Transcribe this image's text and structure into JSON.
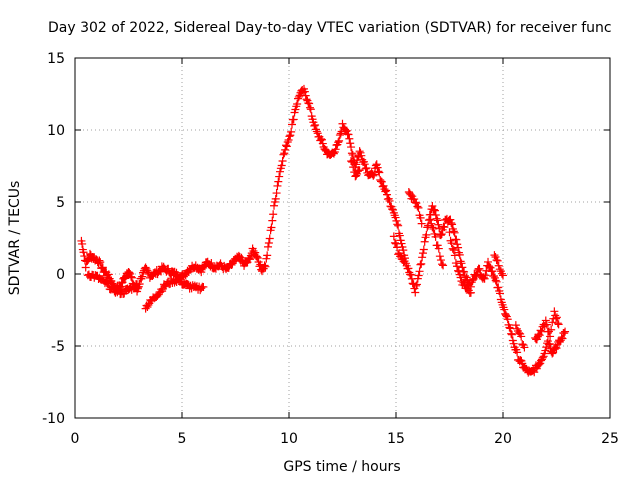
{
  "chart_data": {
    "type": "scatter",
    "title": "Day 302 of 2022, Sidereal Day-to-day VTEC variation (SDTVAR) for receiver func",
    "xlabel": "GPS time / hours",
    "ylabel": "SDTVAR / TECUs",
    "xlim": [
      0,
      25
    ],
    "ylim": [
      -10,
      15
    ],
    "xticks": [
      "0",
      "5",
      "10",
      "15",
      "20",
      "25"
    ],
    "yticks": [
      "-10",
      "-5",
      "0",
      "5",
      "10",
      "15"
    ],
    "grid": true,
    "marker": "+",
    "color": "#ff0000",
    "series": [
      {
        "name": "SDTVAR",
        "trace": [
          [
            0.3,
            2.3
          ],
          [
            0.4,
            1.6
          ],
          [
            0.5,
            0.6
          ],
          [
            0.7,
            1.3
          ],
          [
            0.9,
            1.1
          ],
          [
            1.1,
            0.9
          ],
          [
            1.3,
            0.3
          ],
          [
            1.5,
            0.0
          ],
          [
            1.7,
            -0.5
          ],
          [
            1.9,
            -1.0
          ],
          [
            2.1,
            -0.9
          ],
          [
            2.3,
            -0.3
          ],
          [
            2.5,
            0.3
          ],
          [
            2.7,
            -0.6
          ],
          [
            2.9,
            -1.2
          ],
          [
            3.1,
            -0.2
          ],
          [
            3.3,
            0.3
          ],
          [
            3.5,
            -0.1
          ],
          [
            3.7,
            0.0
          ],
          [
            3.9,
            0.2
          ],
          [
            4.1,
            0.4
          ],
          [
            4.4,
            0.2
          ],
          [
            4.7,
            0.0
          ],
          [
            5.0,
            -0.2
          ],
          [
            5.3,
            0.3
          ],
          [
            5.6,
            0.6
          ],
          [
            5.9,
            0.3
          ],
          [
            6.2,
            0.8
          ],
          [
            6.5,
            0.5
          ],
          [
            6.8,
            0.6
          ],
          [
            7.1,
            0.3
          ],
          [
            7.4,
            0.8
          ],
          [
            7.7,
            1.2
          ],
          [
            7.9,
            0.6
          ],
          [
            8.1,
            0.9
          ],
          [
            8.3,
            1.6
          ],
          [
            8.5,
            1.3
          ],
          [
            8.7,
            0.3
          ],
          [
            8.9,
            0.6
          ],
          [
            9.1,
            2.5
          ],
          [
            9.3,
            4.6
          ],
          [
            9.5,
            6.5
          ],
          [
            9.7,
            8.0
          ],
          [
            9.9,
            9.0
          ],
          [
            10.1,
            10.0
          ],
          [
            10.3,
            11.5
          ],
          [
            10.5,
            12.5
          ],
          [
            10.7,
            12.7
          ],
          [
            10.9,
            12.0
          ],
          [
            11.1,
            10.8
          ],
          [
            11.3,
            9.8
          ],
          [
            11.5,
            9.3
          ],
          [
            11.7,
            8.6
          ],
          [
            11.9,
            8.2
          ],
          [
            12.1,
            8.5
          ],
          [
            12.3,
            9.0
          ],
          [
            12.5,
            10.3
          ],
          [
            12.7,
            10.0
          ],
          [
            12.9,
            8.8
          ],
          [
            13.1,
            7.5
          ],
          [
            13.3,
            8.5
          ],
          [
            13.5,
            7.8
          ],
          [
            13.7,
            7.0
          ],
          [
            13.9,
            6.8
          ],
          [
            14.1,
            7.5
          ],
          [
            14.3,
            6.5
          ],
          [
            14.5,
            5.8
          ],
          [
            14.7,
            5.0
          ],
          [
            14.9,
            4.4
          ],
          [
            15.1,
            3.2
          ],
          [
            15.3,
            2.0
          ],
          [
            15.5,
            0.6
          ],
          [
            15.7,
            -0.2
          ],
          [
            15.9,
            -1.2
          ],
          [
            16.1,
            0.2
          ],
          [
            16.3,
            1.8
          ],
          [
            16.5,
            3.5
          ],
          [
            16.7,
            4.8
          ],
          [
            16.9,
            4.0
          ],
          [
            17.1,
            2.6
          ],
          [
            17.3,
            3.6
          ],
          [
            17.5,
            3.8
          ],
          [
            17.7,
            3.0
          ],
          [
            17.9,
            1.8
          ],
          [
            18.1,
            0.5
          ],
          [
            18.3,
            -0.4
          ],
          [
            18.5,
            -0.8
          ],
          [
            18.7,
            0.0
          ],
          [
            18.9,
            0.3
          ],
          [
            19.1,
            -0.4
          ],
          [
            19.3,
            0.8
          ],
          [
            19.5,
            0.2
          ],
          [
            19.7,
            -0.7
          ],
          [
            19.9,
            -1.6
          ],
          [
            20.1,
            -2.8
          ],
          [
            20.3,
            -3.6
          ],
          [
            20.5,
            -4.8
          ],
          [
            20.7,
            -5.8
          ],
          [
            20.9,
            -6.3
          ],
          [
            21.1,
            -6.7
          ],
          [
            21.3,
            -6.9
          ],
          [
            21.5,
            -6.6
          ],
          [
            21.7,
            -6.2
          ],
          [
            21.9,
            -5.6
          ],
          [
            22.1,
            -4.6
          ],
          [
            22.3,
            -5.4
          ],
          [
            22.5,
            -5.0
          ],
          [
            22.7,
            -4.6
          ],
          [
            22.9,
            -4.0
          ]
        ],
        "branches": [
          [
            [
              0.6,
              0.0
            ],
            [
              1.0,
              -0.2
            ],
            [
              1.4,
              -0.6
            ],
            [
              1.8,
              -1.1
            ],
            [
              2.2,
              -1.3
            ],
            [
              2.6,
              -1.0
            ],
            [
              3.0,
              -0.7
            ]
          ],
          [
            [
              3.3,
              -2.3
            ],
            [
              3.6,
              -1.8
            ],
            [
              3.9,
              -1.3
            ],
            [
              4.2,
              -0.8
            ],
            [
              4.5,
              -0.5
            ],
            [
              4.8,
              -0.4
            ],
            [
              5.1,
              -0.7
            ],
            [
              5.4,
              -0.9
            ],
            [
              5.7,
              -1.0
            ],
            [
              6.0,
              -0.9
            ]
          ],
          [
            [
              12.9,
              7.9
            ],
            [
              13.1,
              6.9
            ],
            [
              13.3,
              7.2
            ]
          ],
          [
            [
              15.6,
              5.6
            ],
            [
              15.8,
              5.2
            ],
            [
              16.0,
              4.8
            ],
            [
              16.2,
              3.5
            ]
          ],
          [
            [
              14.9,
              2.6
            ],
            [
              15.1,
              1.4
            ],
            [
              15.4,
              0.9
            ]
          ],
          [
            [
              16.6,
              3.8
            ],
            [
              16.8,
              2.7
            ],
            [
              17.0,
              1.6
            ],
            [
              17.2,
              0.6
            ]
          ],
          [
            [
              17.5,
              2.8
            ],
            [
              17.7,
              1.5
            ],
            [
              17.9,
              0.3
            ],
            [
              18.1,
              -0.6
            ],
            [
              18.3,
              -1.0
            ],
            [
              18.5,
              -1.3
            ]
          ],
          [
            [
              19.6,
              1.4
            ],
            [
              19.8,
              0.7
            ],
            [
              20.0,
              -0.1
            ]
          ],
          [
            [
              21.5,
              -4.6
            ],
            [
              21.8,
              -4.0
            ],
            [
              22.0,
              -3.3
            ],
            [
              22.2,
              -4.4
            ],
            [
              22.4,
              -2.6
            ],
            [
              22.6,
              -3.5
            ]
          ],
          [
            [
              20.6,
              -3.5
            ],
            [
              20.8,
              -4.3
            ],
            [
              21.0,
              -5.1
            ]
          ]
        ]
      }
    ]
  }
}
